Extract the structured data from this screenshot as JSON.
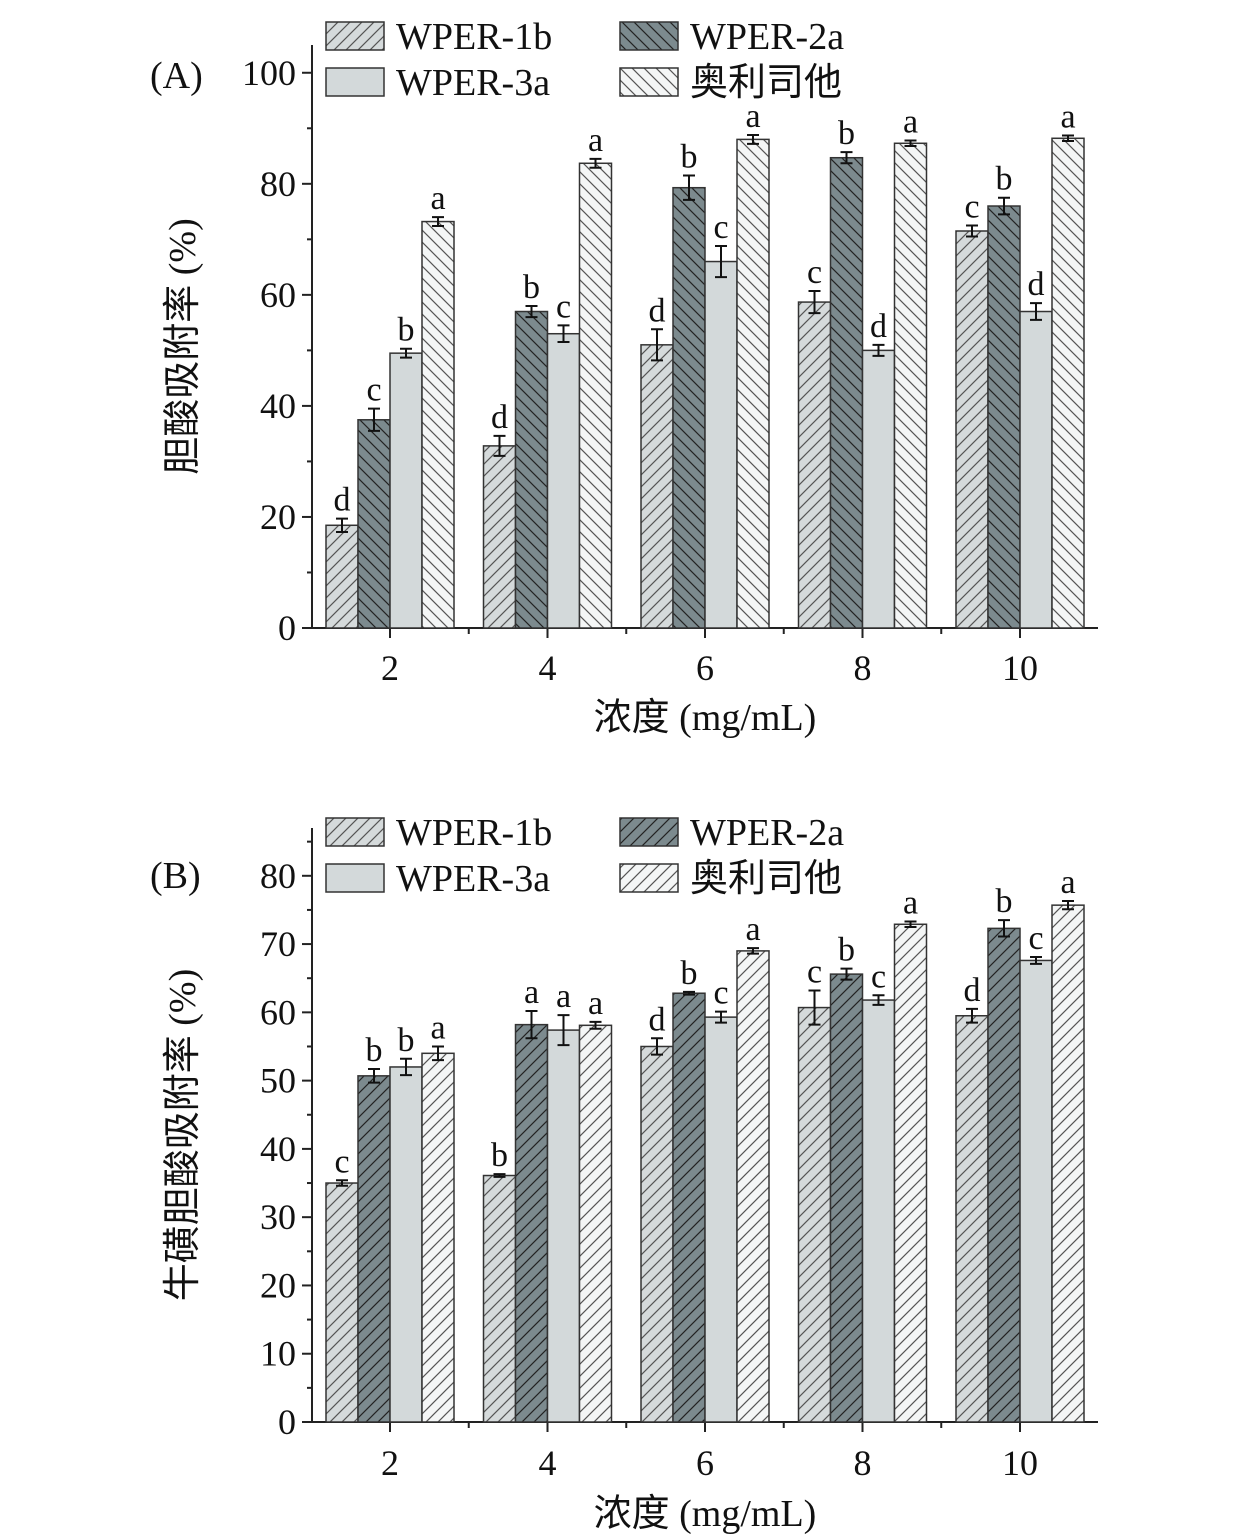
{
  "chart_data": [
    {
      "type": "bar",
      "panel_label": "(A)",
      "xlabel": "浓度 (mg/mL)",
      "ylabel": "胆酸吸附率 (%)",
      "categories": [
        "2",
        "4",
        "6",
        "8",
        "10"
      ],
      "ylim": [
        0,
        105
      ],
      "yticks": [
        "0",
        "20",
        "40",
        "60",
        "80",
        "100"
      ],
      "ytick_values": [
        0,
        20,
        40,
        60,
        80,
        100
      ],
      "legend": [
        "WPER-1b",
        "WPER-2a",
        "WPER-3a",
        "奥利司他"
      ],
      "legend_position": "top",
      "series": [
        {
          "name": "WPER-1b",
          "values": [
            18.5,
            32.8,
            51.0,
            58.7,
            71.5
          ],
          "errors": [
            1.2,
            1.8,
            2.8,
            2.0,
            1.0
          ],
          "letters": [
            "d",
            "d",
            "d",
            "c",
            "c"
          ],
          "fill": "#d5dadb",
          "hatch": "fwd",
          "hatch_color": "#555"
        },
        {
          "name": "WPER-2a",
          "values": [
            37.5,
            57.0,
            79.3,
            84.7,
            76.0
          ],
          "errors": [
            2.0,
            1.0,
            2.2,
            1.0,
            1.5
          ],
          "letters": [
            "c",
            "b",
            "b",
            "b",
            "b"
          ],
          "fill": "#7c8a8e",
          "hatch": "back",
          "hatch_color": "#222"
        },
        {
          "name": "WPER-3a",
          "values": [
            49.5,
            53.0,
            66.0,
            50.0,
            57.0
          ],
          "errors": [
            0.8,
            1.5,
            2.8,
            1.0,
            1.5
          ],
          "letters": [
            "b",
            "c",
            "c",
            "d",
            "d"
          ],
          "fill": "#d3d9da",
          "hatch": "none",
          "hatch_color": "#555"
        },
        {
          "name": "奥利司他",
          "values": [
            73.2,
            83.7,
            88.0,
            87.3,
            88.2
          ],
          "errors": [
            0.8,
            0.8,
            0.8,
            0.5,
            0.5
          ],
          "letters": [
            "a",
            "a",
            "a",
            "a",
            "a"
          ],
          "fill": "#f4f6f6",
          "hatch": "back",
          "hatch_color": "#555"
        }
      ]
    },
    {
      "type": "bar",
      "panel_label": "(B)",
      "xlabel": "浓度 (mg/mL)",
      "ylabel": "牛磺胆酸吸附率 (%)",
      "categories": [
        "2",
        "4",
        "6",
        "8",
        "10"
      ],
      "ylim": [
        0,
        87
      ],
      "yticks": [
        "0",
        "10",
        "20",
        "30",
        "40",
        "50",
        "60",
        "70",
        "80"
      ],
      "ytick_values": [
        0,
        10,
        20,
        30,
        40,
        50,
        60,
        70,
        80
      ],
      "legend": [
        "WPER-1b",
        "WPER-2a",
        "WPER-3a",
        "奥利司他"
      ],
      "legend_position": "top",
      "series": [
        {
          "name": "WPER-1b",
          "values": [
            35.0,
            36.1,
            55.0,
            60.7,
            59.5
          ],
          "errors": [
            0.4,
            0.2,
            1.2,
            2.5,
            1.0
          ],
          "letters": [
            "c",
            "b",
            "d",
            "c",
            "d"
          ],
          "fill": "#d5dadb",
          "hatch": "fwd",
          "hatch_color": "#555"
        },
        {
          "name": "WPER-2a",
          "values": [
            50.7,
            58.2,
            62.8,
            65.6,
            72.3
          ],
          "errors": [
            1.0,
            2.0,
            0.2,
            0.8,
            1.2
          ],
          "letters": [
            "b",
            "a",
            "b",
            "b",
            "b"
          ],
          "fill": "#7c8a8e",
          "hatch": "fwd",
          "hatch_color": "#222"
        },
        {
          "name": "WPER-3a",
          "values": [
            52.0,
            57.4,
            59.3,
            61.8,
            67.6
          ],
          "errors": [
            1.2,
            2.2,
            0.8,
            0.7,
            0.5
          ],
          "letters": [
            "b",
            "a",
            "c",
            "c",
            "c"
          ],
          "fill": "#d3d9da",
          "hatch": "none",
          "hatch_color": "#555"
        },
        {
          "name": "奥利司他",
          "values": [
            54.0,
            58.1,
            69.0,
            72.9,
            75.7
          ],
          "errors": [
            1.0,
            0.5,
            0.4,
            0.4,
            0.6
          ],
          "letters": [
            "a",
            "a",
            "a",
            "a",
            "a"
          ],
          "fill": "#f4f6f6",
          "hatch": "fwd",
          "hatch_color": "#555"
        }
      ]
    }
  ]
}
